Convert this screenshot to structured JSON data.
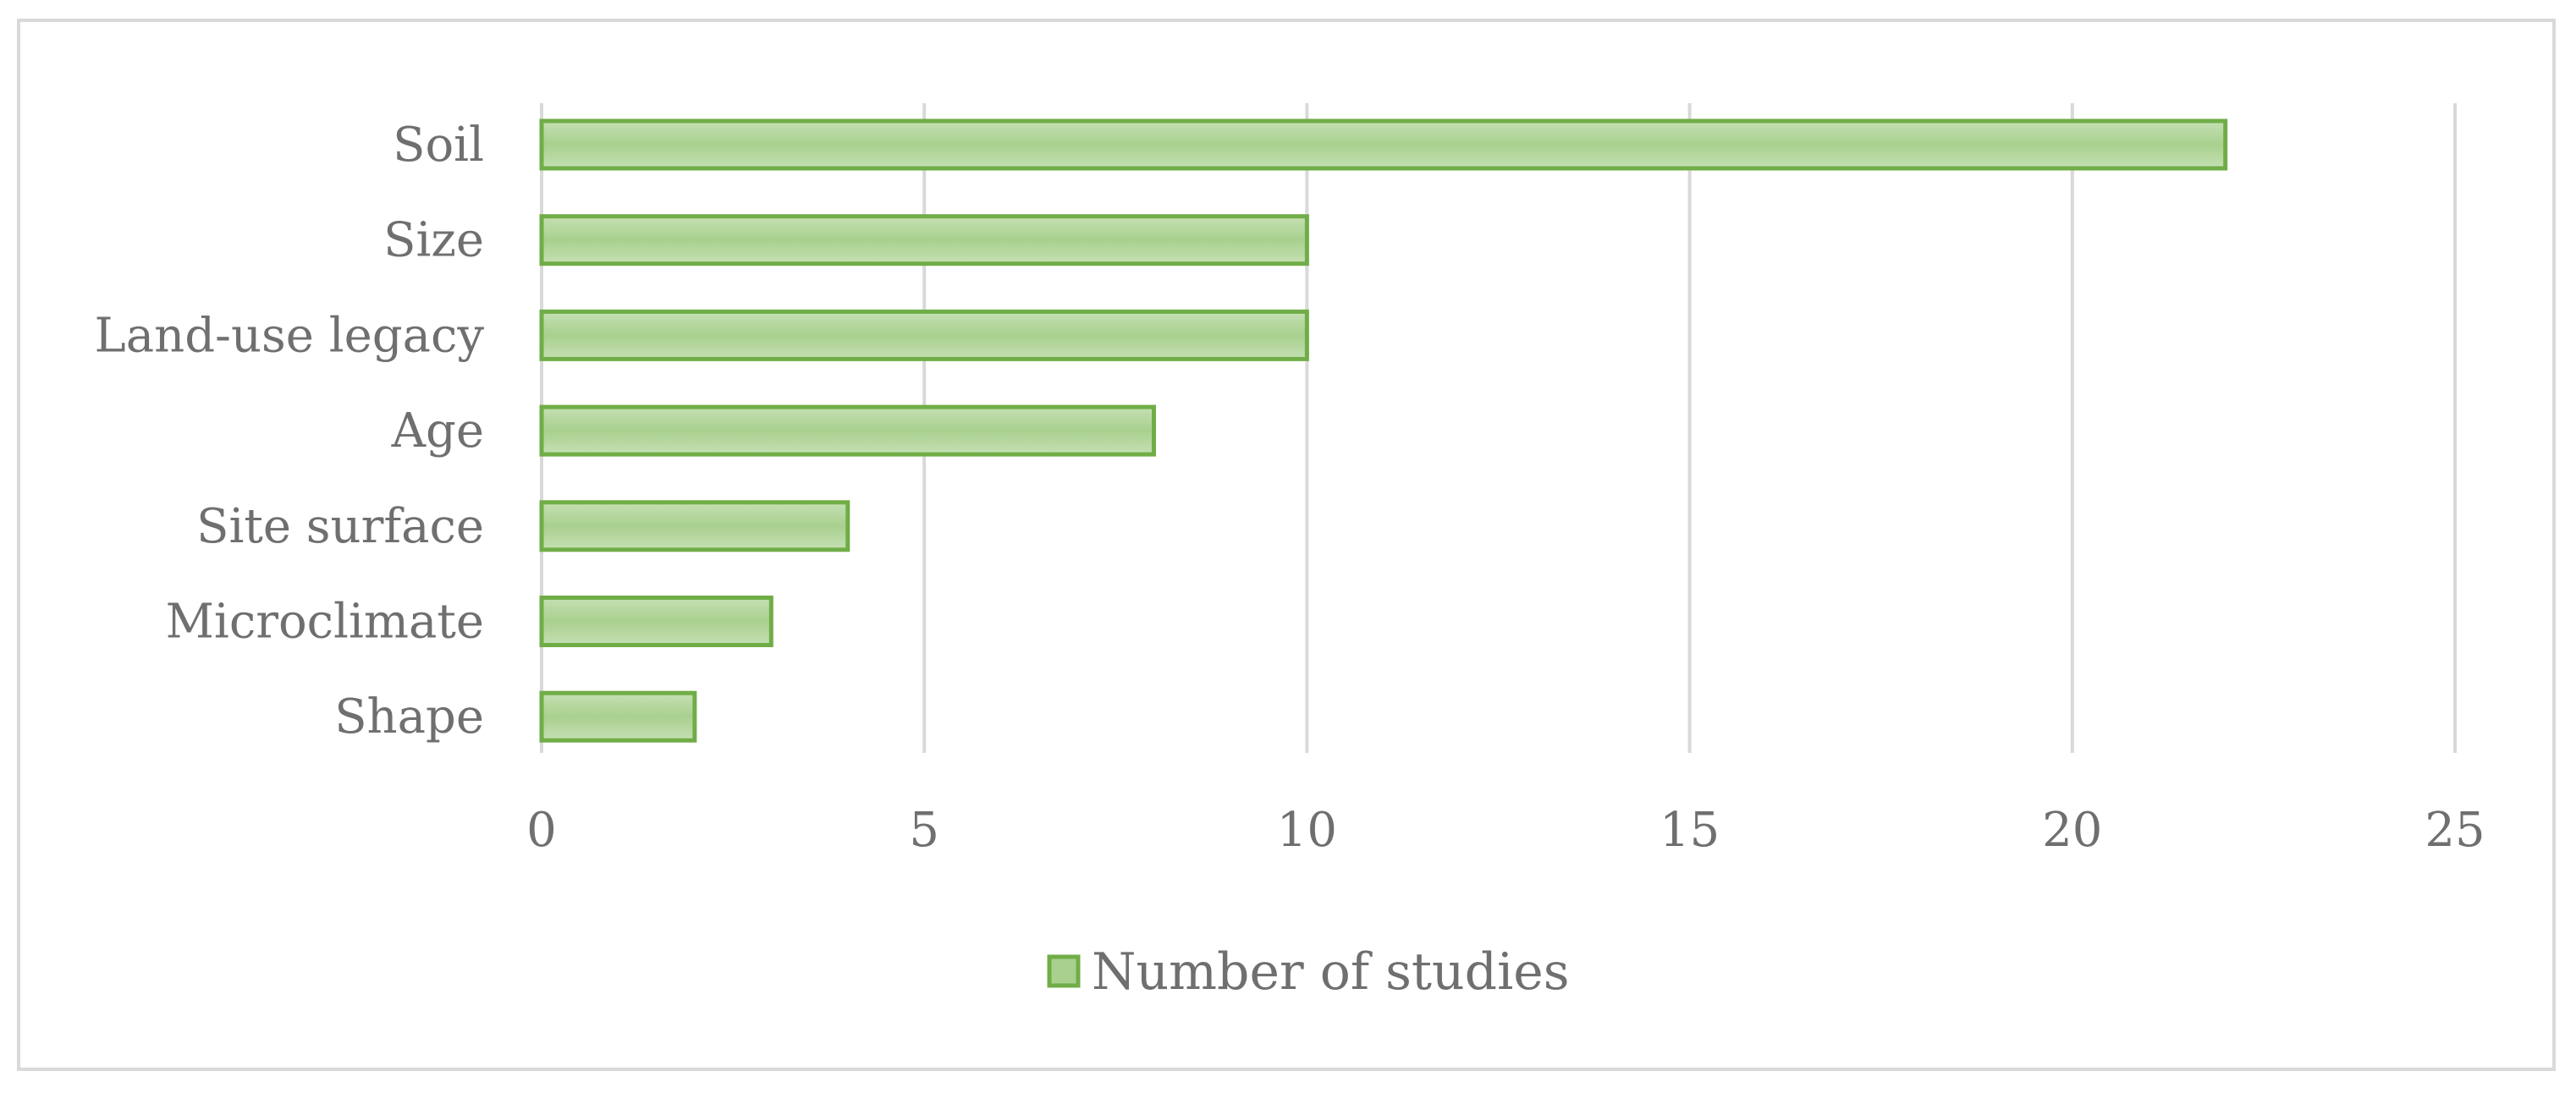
{
  "chart_data": {
    "type": "bar",
    "orientation": "horizontal",
    "categories": [
      "Soil",
      "Size",
      "Land-use legacy",
      "Age",
      "Site surface",
      "Microclimate",
      "Shape"
    ],
    "series": [
      {
        "name": "Number of studies",
        "values": [
          22,
          10,
          10,
          8,
          4,
          3,
          2
        ],
        "fill": "#a9d08e",
        "stroke": "#70ad47"
      }
    ],
    "xlim": [
      0,
      25
    ],
    "xticks": [
      "0",
      "5",
      "10",
      "15",
      "20",
      "25"
    ],
    "grid": "vertical",
    "legend": "bottom",
    "title": "",
    "xlabel": "",
    "ylabel": ""
  }
}
